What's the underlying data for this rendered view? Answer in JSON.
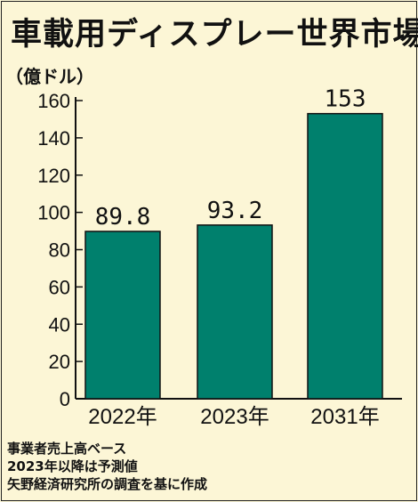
{
  "title": "車載用ディスプレー世界市場",
  "unit_label": "（億ドル）",
  "notes": [
    "事業者売上高ベース",
    "2023年以降は予測値",
    "矢野経済研究所の調査を基に作成"
  ],
  "colors": {
    "bar": "#00806d",
    "background": "#fcf6d6",
    "text": "#111111"
  },
  "chart_data": {
    "type": "bar",
    "categories": [
      "2022年",
      "2023年",
      "2031年"
    ],
    "values": [
      89.8,
      93.2,
      153
    ],
    "value_labels": [
      "89.8",
      "93.2",
      "153"
    ],
    "ylabel": "（億ドル）",
    "ylim": [
      0,
      160
    ],
    "yticks": [
      0,
      20,
      40,
      60,
      80,
      100,
      120,
      140,
      160
    ],
    "grid": false,
    "legend": "none"
  }
}
